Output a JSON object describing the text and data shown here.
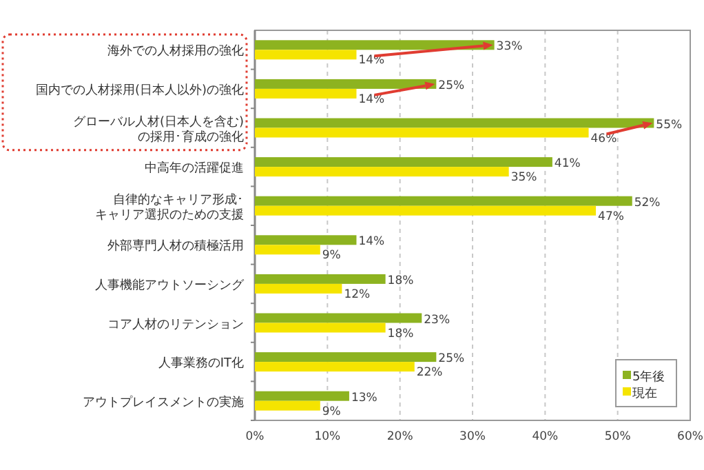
{
  "chart_data": {
    "type": "bar",
    "orientation": "horizontal",
    "categories": [
      "海外での人材採用の強化",
      "国内での人材採用(日本人以外)の強化",
      "グローバル人材(日本人を含む)の採用･育成の強化",
      "中高年の活躍促進",
      "自律的なキャリア形成･キャリア選択のための支援",
      "外部専門人材の積極活用",
      "人事機能アウトソーシング",
      "コア人材のリテンション",
      "人事業務のIT化",
      "アウトプレイスメントの実施"
    ],
    "series": [
      {
        "name": "5年後",
        "color": "#8db320",
        "values": [
          33,
          25,
          55,
          41,
          52,
          14,
          18,
          23,
          25,
          13
        ],
        "value_labels": [
          "33%",
          "25%",
          "55%",
          "41%",
          "52%",
          "14%",
          "18%",
          "23%",
          "25%",
          "13%"
        ]
      },
      {
        "name": "現在",
        "color": "#f5e400",
        "values": [
          14,
          14,
          46,
          35,
          47,
          9,
          12,
          18,
          22,
          9
        ],
        "value_labels": [
          "14%",
          "14%",
          "46%",
          "35%",
          "47%",
          "9%",
          "12%",
          "18%",
          "22%",
          "9%"
        ]
      }
    ],
    "xlim": [
      0,
      60
    ],
    "xticks": [
      {
        "value": 0,
        "label": "0%"
      },
      {
        "value": 10,
        "label": "10%"
      },
      {
        "value": 20,
        "label": "20%"
      },
      {
        "value": 30,
        "label": "30%"
      },
      {
        "value": 40,
        "label": "40%"
      },
      {
        "value": 50,
        "label": "50%"
      },
      {
        "value": 60,
        "label": "60%"
      }
    ],
    "grid": "x",
    "legend": "bottom right"
  }
}
